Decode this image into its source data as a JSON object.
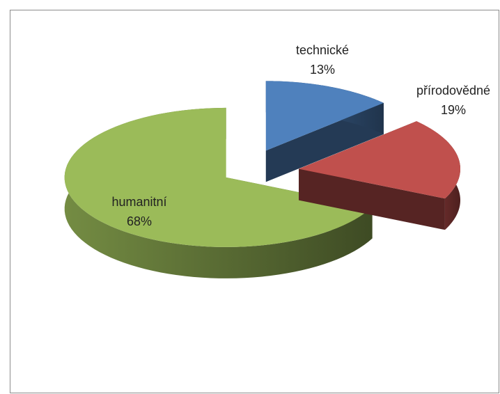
{
  "chart_data": {
    "type": "pie3d",
    "categories": [
      "technické",
      "přírodovědné",
      "humanitní"
    ],
    "values": [
      13,
      19,
      68
    ],
    "value_labels": [
      "13%",
      "19%",
      "68%"
    ],
    "colors": [
      "#4f81bd",
      "#c0504d",
      "#9bbb59"
    ]
  }
}
